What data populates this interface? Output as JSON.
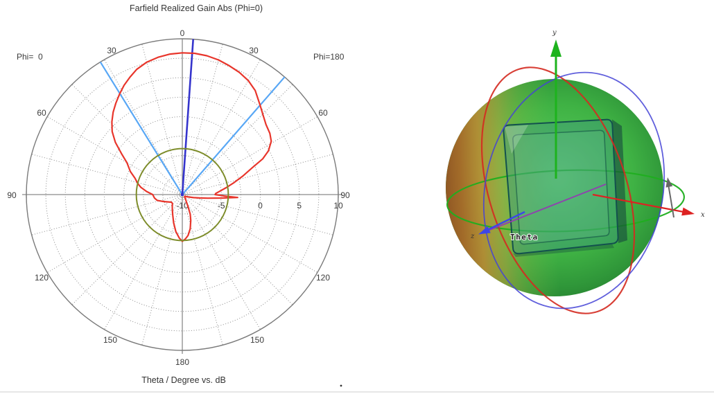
{
  "page": {
    "background": "#ffffff",
    "bottom_rule_color": "#e6e6e6"
  },
  "chart_data": {
    "type": "polar",
    "title": "Farfield Realized Gain Abs (Phi=0)",
    "caption": "Theta / Degree vs. dB",
    "left_annotation": "Phi=  0",
    "right_annotation": "Phi=180",
    "angle_unit": "Theta / Degree",
    "radial_unit": "dB",
    "angle_ticks": [
      0,
      30,
      60,
      90,
      120,
      150,
      180
    ],
    "radial_ticks": [
      -10,
      -5,
      0,
      5,
      10
    ],
    "radial_range": [
      -10,
      10
    ],
    "grid_rings_db": [
      -7.5,
      -5,
      -2.5,
      0,
      2.5,
      5,
      7.5
    ],
    "grid_angle_step_deg": 15,
    "legend_position": "none",
    "grid": "dotted",
    "series": [
      {
        "name": "realized-gain",
        "color": "#e8352b",
        "width": 2.2,
        "points": [
          [
            -180,
            -4.0
          ],
          [
            -176,
            -4.4
          ],
          [
            -170,
            -5.2
          ],
          [
            -163,
            -6.2
          ],
          [
            -155,
            -7.1
          ],
          [
            -148,
            -7.6
          ],
          [
            -140,
            -8.0
          ],
          [
            -132,
            -8.3
          ],
          [
            -125,
            -8.3
          ],
          [
            -118,
            -8.0
          ],
          [
            -110,
            -7.4
          ],
          [
            -103,
            -6.7
          ],
          [
            -97,
            -6.4
          ],
          [
            -90,
            -6.2
          ],
          [
            -85,
            -5.4
          ],
          [
            -80,
            -4.6
          ],
          [
            -76,
            -4.1
          ],
          [
            -71,
            -3.6
          ],
          [
            -66,
            -2.7
          ],
          [
            -60,
            -1.8
          ],
          [
            -56,
            -0.6
          ],
          [
            -52,
            0.9
          ],
          [
            -48,
            2.1
          ],
          [
            -44,
            3.0
          ],
          [
            -40,
            3.8
          ],
          [
            -36,
            4.5
          ],
          [
            -32,
            5.2
          ],
          [
            -28,
            5.9
          ],
          [
            -24,
            6.5
          ],
          [
            -20,
            7.1
          ],
          [
            -15,
            7.6
          ],
          [
            -10,
            7.9
          ],
          [
            -5,
            8.1
          ],
          [
            0,
            8.2
          ],
          [
            5,
            8.2
          ],
          [
            10,
            8.1
          ],
          [
            15,
            7.9
          ],
          [
            20,
            7.6
          ],
          [
            25,
            7.3
          ],
          [
            30,
            6.9
          ],
          [
            35,
            6.3
          ],
          [
            41,
            5.2
          ],
          [
            45,
            4.6
          ],
          [
            50,
            4.0
          ],
          [
            55,
            3.7
          ],
          [
            59,
            3.3
          ],
          [
            63,
            2.4
          ],
          [
            66,
            1.3
          ],
          [
            69,
            -0.4
          ],
          [
            73,
            -1.9
          ],
          [
            77,
            -3.2
          ],
          [
            81,
            -4.3
          ],
          [
            85,
            -5.2
          ],
          [
            88,
            -5.7
          ],
          [
            90,
            -5.8
          ],
          [
            92,
            -4.6
          ],
          [
            93,
            -2.9
          ],
          [
            95,
            -4.9
          ],
          [
            98,
            -6.7
          ],
          [
            101,
            -7.7
          ],
          [
            105,
            -8.5
          ],
          [
            110,
            -9.1
          ],
          [
            116,
            -9.4
          ],
          [
            124,
            -9.6
          ],
          [
            134,
            -9.6
          ],
          [
            144,
            -9.3
          ],
          [
            150,
            -9.0
          ],
          [
            154,
            -8.4
          ],
          [
            158,
            -7.3
          ],
          [
            162,
            -6.5
          ],
          [
            167,
            -5.5
          ],
          [
            172,
            -4.7
          ],
          [
            176,
            -4.3
          ],
          [
            180,
            -4.0
          ]
        ]
      },
      {
        "name": "reference-circle",
        "color": "#7d8c2a",
        "width": 2,
        "constant_db": -4.1
      }
    ],
    "markers": {
      "main_lobe": {
        "angle_deg": 4,
        "color": "#3534cc",
        "width": 2.6
      },
      "beamwidth": {
        "angles_deg": [
          -31.7,
          41
        ],
        "color": "#58a7f5",
        "width": 2.2
      }
    },
    "grid_color": "#8a8a8a",
    "outer_ring_color": "#7a7a7a"
  },
  "view3d": {
    "labels": {
      "x": "x",
      "y": "y",
      "z": "z",
      "theta": "Theta"
    },
    "axis_colors": {
      "x": "#dd2222",
      "y": "#1db31d",
      "z": "#3d46e8",
      "theta_arrow": "#9537b5",
      "rotation_arrow": "#666666"
    },
    "sphere_colors": {
      "main": "#3fb244",
      "hot": "#ac6828",
      "edge": "#237a2c"
    },
    "substrate_color": "#13514e"
  }
}
